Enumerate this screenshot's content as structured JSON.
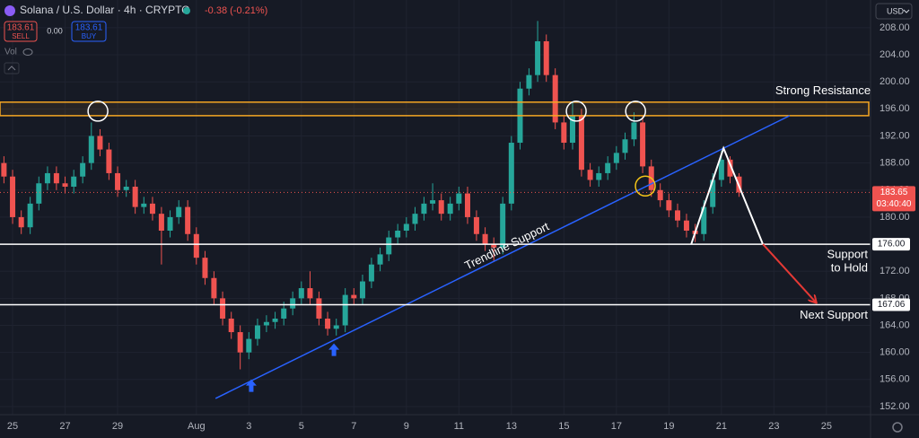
{
  "chart_data": {
    "type": "candlestick",
    "title": "Solana / U.S. Dollar · 4h · CRYPTO",
    "change": "-0.38 (-0.21%)",
    "sell": {
      "price": 183.61,
      "label": "SELL"
    },
    "spread": {
      "value": 0,
      "label": "0.00"
    },
    "buy": {
      "price": 183.61,
      "label": "BUY"
    },
    "volume_label": "Vol",
    "currency": "USD",
    "up_color": "#26a69a",
    "down_color": "#ef5350",
    "x": [
      -0.33,
      0,
      0.33,
      0.67,
      1,
      1.33,
      1.67,
      2,
      2.33,
      2.67,
      3,
      3.33,
      3.67,
      4,
      4.33,
      4.67,
      5,
      5.33,
      5.67,
      6,
      6.33,
      6.67,
      7,
      7.33,
      7.67,
      8,
      8.33,
      8.67,
      9,
      9.33,
      9.67,
      10,
      10.33,
      10.67,
      11,
      11.33,
      11.67,
      12,
      12.33,
      12.67,
      13,
      13.33,
      13.67,
      14,
      14.33,
      14.67,
      15,
      15.33,
      15.67,
      16,
      16.33,
      16.67,
      17,
      17.33,
      17.67,
      18,
      18.33,
      18.67,
      19,
      19.33,
      19.67,
      20,
      20.33,
      20.67,
      21,
      21.33,
      21.67,
      22,
      22.33,
      22.67,
      23,
      23.33,
      23.67,
      24,
      24.33,
      24.67,
      25,
      25.33,
      25.67,
      26,
      26.33,
      26.67,
      27,
      27.33,
      27.67
    ],
    "open": [
      188,
      186,
      180,
      178.5,
      182,
      185,
      186.5,
      185,
      184.5,
      186,
      188,
      192,
      190,
      186.5,
      184,
      184.5,
      181.5,
      182,
      180.5,
      178,
      180,
      181.5,
      177.5,
      174,
      171,
      168,
      165,
      163,
      160,
      162,
      164,
      164.5,
      165,
      166.5,
      168,
      169.5,
      168,
      165,
      163.5,
      164,
      168.5,
      168,
      170.5,
      173,
      174.5,
      177,
      178,
      179,
      180.5,
      182,
      182.5,
      180.5,
      182,
      183.5,
      180,
      177.5,
      176,
      175.5,
      182,
      191,
      199,
      201,
      206,
      201,
      194,
      191,
      195,
      187,
      185.5,
      186.5,
      188,
      189.5,
      191.5,
      194,
      187.5,
      184,
      182.5,
      181,
      179.5,
      178,
      177.5,
      181.5,
      185.5,
      188.5,
      186
    ],
    "high": [
      189,
      187,
      181,
      183,
      186,
      187.5,
      187.5,
      186,
      187,
      189,
      194,
      193,
      191,
      187.5,
      185.5,
      185.5,
      183,
      183,
      181.5,
      181,
      182.5,
      182.5,
      178.5,
      175,
      172,
      169,
      166,
      164,
      163,
      165,
      165.5,
      166,
      167.5,
      169,
      170.5,
      172,
      169,
      166,
      165,
      169.5,
      169.5,
      171.5,
      174,
      175.5,
      178,
      179,
      180,
      181.5,
      183,
      185,
      183.5,
      183,
      184.5,
      184.5,
      181,
      178.5,
      177,
      183,
      192,
      200,
      202,
      209,
      207,
      202,
      195,
      197,
      196,
      188,
      187.5,
      189,
      190.5,
      192.5,
      195.5,
      195,
      188.5,
      185,
      183.5,
      182,
      180.5,
      179,
      182.5,
      186.5,
      189.8,
      189,
      186.5
    ],
    "low": [
      185,
      179,
      177.5,
      177.5,
      181,
      184,
      184,
      183.5,
      183.5,
      185,
      187,
      189,
      185.5,
      183,
      183,
      180.5,
      180.5,
      179.5,
      173,
      177,
      179,
      176.5,
      173,
      170,
      167,
      164,
      162,
      157.5,
      159,
      161,
      163,
      163.5,
      164,
      165.5,
      167,
      167,
      164,
      162.5,
      162.5,
      163,
      167,
      167,
      169.5,
      172,
      173.5,
      176,
      177,
      178,
      179.5,
      181,
      179.5,
      179.5,
      181,
      179,
      176.5,
      175,
      173.5,
      174.5,
      181,
      190,
      198,
      200,
      200,
      193,
      190,
      190,
      186,
      184.5,
      184.5,
      185.5,
      187,
      188.5,
      190.5,
      186.5,
      183,
      181.5,
      180,
      178.5,
      177,
      176.3,
      176.5,
      180.5,
      184.5,
      185,
      183
    ],
    "close": [
      186,
      180,
      178.5,
      182,
      185,
      186.5,
      185,
      184.5,
      186,
      188,
      192,
      190,
      186.5,
      184,
      184.5,
      181.5,
      182,
      180.5,
      178,
      180,
      181.5,
      177.5,
      174,
      171,
      168,
      165,
      163,
      160,
      162,
      164,
      164.5,
      165,
      166.5,
      168,
      169.5,
      168,
      165,
      163.5,
      164,
      168.5,
      168,
      170.5,
      173,
      174.5,
      177,
      178,
      179,
      180.5,
      182,
      182.5,
      180.5,
      182,
      183.5,
      180,
      177.5,
      176,
      175.5,
      182,
      191,
      199,
      201,
      206,
      201,
      194,
      191,
      195,
      187,
      185.5,
      186.5,
      188,
      189.5,
      191.5,
      194,
      187.5,
      184,
      182.5,
      181,
      179.5,
      178,
      177.5,
      181.5,
      185.5,
      188.5,
      186,
      183.65
    ],
    "xlim": [
      -0.48,
      32.68
    ],
    "xticks": [
      {
        "value": 0,
        "label": "25"
      },
      {
        "value": 2,
        "label": "27"
      },
      {
        "value": 4,
        "label": "29"
      },
      {
        "value": 7,
        "label": "Aug"
      },
      {
        "value": 9,
        "label": "3"
      },
      {
        "value": 11,
        "label": "5"
      },
      {
        "value": 13,
        "label": "7"
      },
      {
        "value": 15,
        "label": "9"
      },
      {
        "value": 17,
        "label": "11"
      },
      {
        "value": 19,
        "label": "13"
      },
      {
        "value": 21,
        "label": "15"
      },
      {
        "value": 23,
        "label": "17"
      },
      {
        "value": 25,
        "label": "19"
      },
      {
        "value": 27,
        "label": "21"
      },
      {
        "value": 29,
        "label": "23"
      },
      {
        "value": 31,
        "label": "25"
      }
    ],
    "ylim": [
      150.8,
      212.1
    ],
    "yticks": [
      {
        "value": 152,
        "label": "152.00"
      },
      {
        "value": 156,
        "label": "156.00"
      },
      {
        "value": 160,
        "label": "160.00"
      },
      {
        "value": 164,
        "label": "164.00"
      },
      {
        "value": 168,
        "label": "168.00"
      },
      {
        "value": 172,
        "label": "172.00"
      },
      {
        "value": 176,
        "label": "176.00"
      },
      {
        "value": 180,
        "label": "180.00"
      },
      {
        "value": 184,
        "label": "184.00"
      },
      {
        "value": 188,
        "label": "188.00"
      },
      {
        "value": 192,
        "label": "192.00"
      },
      {
        "value": 196,
        "label": "196.00"
      },
      {
        "value": 200,
        "label": "200.00"
      },
      {
        "value": 204,
        "label": "204.00"
      },
      {
        "value": 208,
        "label": "208.00"
      }
    ],
    "grid": true,
    "last_price": {
      "value": 183.65,
      "label": "183.65",
      "countdown": "03:40:40"
    },
    "resistance_zone": {
      "low": 195,
      "high": 197,
      "label": "Strong Resistance",
      "color": "#f5a623"
    },
    "levels": [
      {
        "value": 176,
        "label": "176.00",
        "text": [
          "Support",
          "to Hold"
        ]
      },
      {
        "value": 167.06,
        "label": "167.06",
        "text": [
          "Next Support"
        ]
      }
    ],
    "trendline": {
      "x": [
        7.73,
        29.6
      ],
      "y": [
        153.2,
        195.0
      ],
      "label": "Trendline Support",
      "color": "#2962ff"
    },
    "pattern": {
      "x": [
        25.85,
        27.08,
        28.58
      ],
      "y": [
        176,
        190.2,
        176
      ]
    },
    "projection": {
      "x": [
        28.58,
        30.6
      ],
      "y": [
        176,
        167.4
      ],
      "color": "#e53935"
    },
    "highlights": [
      {
        "x": 3.25,
        "y": 195.66,
        "color": "#ffffff"
      },
      {
        "x": 21.47,
        "y": 195.66,
        "color": "#ffffff"
      },
      {
        "x": 23.73,
        "y": 195.66,
        "color": "#ffffff"
      },
      {
        "x": 24.1,
        "y": 184.6,
        "color": "#f5c518"
      }
    ],
    "touches": [
      {
        "x": 9.09,
        "y": 155.1
      },
      {
        "x": 12.24,
        "y": 160.4
      }
    ]
  }
}
